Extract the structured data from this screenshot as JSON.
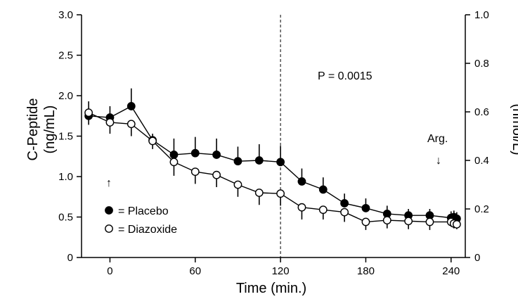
{
  "chart_data": {
    "type": "line",
    "xlabel": "Time (min.)",
    "ylabel_line1": "C-Peptide",
    "ylabel_line2": "(ng/mL)",
    "y2label": "(nmol/L)",
    "xlim": [
      -20,
      250
    ],
    "ylim": [
      0,
      3.0
    ],
    "y2lim": [
      0,
      1.0
    ],
    "xticks": [
      0,
      60,
      120,
      180,
      240
    ],
    "xtick_labels": [
      "0",
      "60",
      "120",
      "180",
      "240"
    ],
    "yticks": [
      0,
      0.5,
      1.0,
      1.5,
      2.0,
      2.5,
      3.0
    ],
    "ytick_labels": [
      "0",
      "0.5",
      "1.0",
      "1.5",
      "2.0",
      "2.5",
      "3.0"
    ],
    "y2ticks": [
      0,
      0.2,
      0.4,
      0.6,
      0.8,
      1.0
    ],
    "y2tick_labels": [
      "0",
      "0.2",
      "0.4",
      "0.6",
      "0.8",
      "1.0"
    ],
    "vline_x": 120,
    "annotations": {
      "p_value": "P = 0.0015",
      "arg_label": "Arg.",
      "arg_arrow": "↓",
      "start_arrow": "↑"
    },
    "legend": [
      {
        "marker": "filled",
        "label": "= Placebo"
      },
      {
        "marker": "open",
        "label": "= Diazoxide"
      }
    ],
    "series": [
      {
        "name": "Placebo",
        "marker": "filled",
        "x": [
          -15,
          0,
          15,
          30,
          45,
          60,
          75,
          90,
          105,
          120,
          135,
          150,
          165,
          180,
          195,
          210,
          225,
          240,
          242,
          244
        ],
        "y": [
          1.75,
          1.73,
          1.87,
          1.45,
          1.27,
          1.29,
          1.27,
          1.19,
          1.2,
          1.18,
          0.94,
          0.84,
          0.67,
          0.61,
          0.54,
          0.52,
          0.52,
          0.49,
          0.5,
          0.48
        ],
        "err": [
          0.18,
          0.14,
          0.22,
          0.08,
          0.2,
          0.2,
          0.2,
          0.18,
          0.2,
          0.2,
          0.16,
          0.15,
          0.12,
          0.12,
          0.1,
          0.08,
          0.08,
          0.08,
          0.08,
          0.08
        ]
      },
      {
        "name": "Diazoxide",
        "marker": "open",
        "x": [
          -15,
          0,
          15,
          30,
          45,
          60,
          75,
          90,
          105,
          120,
          135,
          150,
          165,
          180,
          195,
          210,
          225,
          240,
          242,
          244
        ],
        "y": [
          1.79,
          1.67,
          1.65,
          1.44,
          1.18,
          1.06,
          1.02,
          0.9,
          0.8,
          0.79,
          0.62,
          0.59,
          0.56,
          0.44,
          0.46,
          0.45,
          0.44,
          0.44,
          0.42,
          0.41
        ],
        "err": [
          0.15,
          0.14,
          0.15,
          0.1,
          0.17,
          0.15,
          0.15,
          0.15,
          0.15,
          0.15,
          0.15,
          0.12,
          0.12,
          0.1,
          0.1,
          0.1,
          0.1,
          0.06,
          0.06,
          0.06
        ]
      }
    ]
  }
}
